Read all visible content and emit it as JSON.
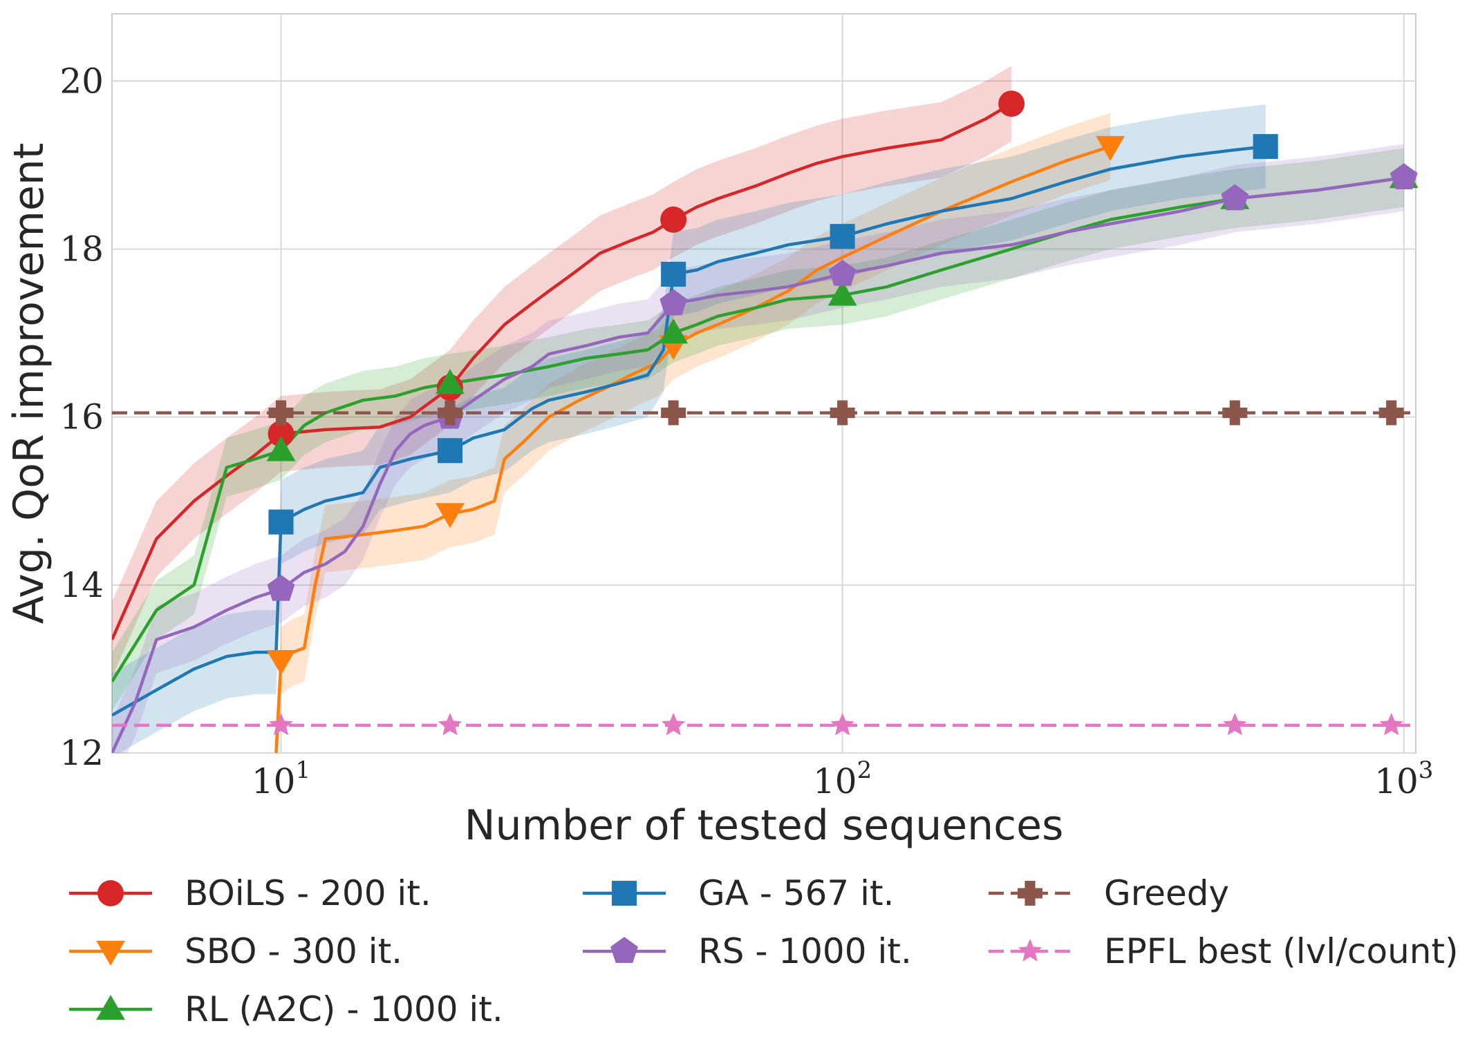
{
  "chart_data": {
    "type": "line",
    "xlabel": "Number of tested sequences",
    "ylabel": "Avg. QoR improvement",
    "x_scale": "log",
    "xlim": [
      5,
      1050
    ],
    "ylim": [
      12,
      20.8
    ],
    "x_ticks": [
      10,
      100,
      1000
    ],
    "x_tick_labels": [
      {
        "base": "10",
        "exp": "1"
      },
      {
        "base": "10",
        "exp": "2"
      },
      {
        "base": "10",
        "exp": "3"
      }
    ],
    "y_ticks": [
      12,
      14,
      16,
      18,
      20
    ],
    "y_tick_labels": [
      "12",
      "14",
      "16",
      "18",
      "20"
    ],
    "grid": true,
    "legend_position": "bottom",
    "series": [
      {
        "name": "BOiLS - 200 it.",
        "color": "#d62728",
        "marker": "circle",
        "dash": "solid",
        "band": 0.45,
        "x": [
          5,
          6,
          7,
          8,
          9,
          10,
          12,
          15,
          17,
          20,
          22,
          25,
          28,
          30,
          33,
          37,
          42,
          46,
          50,
          55,
          60,
          70,
          80,
          90,
          100,
          120,
          150,
          180,
          200
        ],
        "y": [
          13.35,
          14.55,
          15.0,
          15.3,
          15.55,
          15.8,
          15.85,
          15.88,
          16.0,
          16.35,
          16.7,
          17.1,
          17.35,
          17.5,
          17.7,
          17.95,
          18.1,
          18.2,
          18.35,
          18.5,
          18.6,
          18.75,
          18.9,
          19.02,
          19.1,
          19.2,
          19.3,
          19.55,
          19.73
        ],
        "marker_x": [
          10,
          20,
          50,
          200
        ]
      },
      {
        "name": "SBO - 300 it.",
        "color": "#ff7f0e",
        "marker": "triangle-down",
        "dash": "solid",
        "band": 0.4,
        "x": [
          9.8,
          10,
          10.5,
          11,
          11.5,
          12,
          14,
          16,
          18,
          20,
          22,
          24,
          25,
          27,
          30,
          34,
          38,
          42,
          47,
          50,
          55,
          60,
          70,
          80,
          90,
          100,
          120,
          150,
          200,
          250,
          300
        ],
        "y": [
          12.0,
          13.1,
          13.2,
          13.25,
          14.0,
          14.55,
          14.6,
          14.65,
          14.7,
          14.85,
          14.9,
          15.0,
          15.5,
          15.7,
          16.0,
          16.2,
          16.35,
          16.5,
          16.65,
          16.85,
          17.0,
          17.1,
          17.3,
          17.5,
          17.75,
          17.9,
          18.15,
          18.45,
          18.8,
          19.05,
          19.22
        ],
        "marker_x": [
          10,
          20,
          50,
          300
        ]
      },
      {
        "name": "RL (A2C) - 1000 it.",
        "color": "#2ca02c",
        "marker": "triangle-up",
        "dash": "solid",
        "band": 0.35,
        "x": [
          5,
          6,
          7,
          8,
          9,
          10,
          11,
          12,
          14,
          16,
          18,
          20,
          25,
          30,
          35,
          40,
          45,
          50,
          55,
          60,
          70,
          80,
          100,
          120,
          150,
          200,
          250,
          300,
          400,
          500,
          700,
          1000
        ],
        "y": [
          12.85,
          13.7,
          14.0,
          15.4,
          15.5,
          15.6,
          15.9,
          16.05,
          16.2,
          16.25,
          16.35,
          16.4,
          16.5,
          16.6,
          16.7,
          16.75,
          16.8,
          17.0,
          17.1,
          17.2,
          17.3,
          17.4,
          17.45,
          17.55,
          17.75,
          18.0,
          18.2,
          18.35,
          18.5,
          18.6,
          18.7,
          18.85
        ],
        "marker_x": [
          10,
          20,
          50,
          100,
          500,
          1000
        ]
      },
      {
        "name": "GA - 567 it.",
        "color": "#1f77b4",
        "marker": "square",
        "dash": "solid",
        "band": 0.5,
        "x": [
          5,
          6,
          7,
          8,
          9,
          9.8,
          10,
          11,
          12,
          13,
          14,
          15,
          17,
          20,
          22,
          25,
          28,
          30,
          35,
          40,
          45,
          48,
          50,
          55,
          60,
          70,
          80,
          100,
          120,
          150,
          200,
          250,
          300,
          400,
          500,
          567
        ],
        "y": [
          12.45,
          12.75,
          13.0,
          13.15,
          13.2,
          13.2,
          14.75,
          14.9,
          15.0,
          15.05,
          15.1,
          15.4,
          15.5,
          15.6,
          15.75,
          15.85,
          16.1,
          16.2,
          16.3,
          16.4,
          16.5,
          16.8,
          17.7,
          17.75,
          17.85,
          17.95,
          18.05,
          18.15,
          18.3,
          18.45,
          18.6,
          18.8,
          18.95,
          19.1,
          19.18,
          19.22
        ],
        "marker_x": [
          10,
          20,
          50,
          100,
          567
        ]
      },
      {
        "name": "RS - 1000 it.",
        "color": "#9467bd",
        "marker": "pentagon",
        "dash": "solid",
        "band": 0.4,
        "x": [
          5,
          5.5,
          6,
          7,
          8,
          9,
          10,
          11,
          12,
          13,
          14,
          15,
          16,
          17,
          18,
          20,
          22,
          25,
          28,
          30,
          35,
          40,
          45,
          50,
          55,
          60,
          70,
          80,
          100,
          120,
          150,
          200,
          250,
          300,
          400,
          500,
          700,
          1000
        ],
        "y": [
          12.0,
          12.6,
          13.35,
          13.5,
          13.7,
          13.85,
          13.95,
          14.15,
          14.25,
          14.4,
          14.7,
          15.2,
          15.6,
          15.8,
          15.9,
          16.0,
          16.2,
          16.45,
          16.6,
          16.75,
          16.85,
          16.95,
          17.0,
          17.35,
          17.4,
          17.45,
          17.5,
          17.55,
          17.7,
          17.8,
          17.95,
          18.05,
          18.2,
          18.3,
          18.45,
          18.6,
          18.7,
          18.85
        ],
        "marker_x": [
          10,
          20,
          50,
          100,
          500,
          1000
        ]
      },
      {
        "name": "Greedy",
        "color": "#8c564b",
        "marker": "plus",
        "dash": "dashed",
        "band": 0,
        "x": [
          5,
          1050
        ],
        "y": [
          16.05,
          16.05
        ],
        "marker_x": [
          10,
          20,
          50,
          100,
          500,
          950
        ]
      },
      {
        "name": "EPFL best (lvl/count)",
        "color": "#e377c2",
        "marker": "star",
        "dash": "dashed",
        "band": 0,
        "x": [
          5,
          1050
        ],
        "y": [
          12.33,
          12.33
        ],
        "marker_x": [
          10,
          20,
          50,
          100,
          500,
          950
        ]
      }
    ]
  }
}
